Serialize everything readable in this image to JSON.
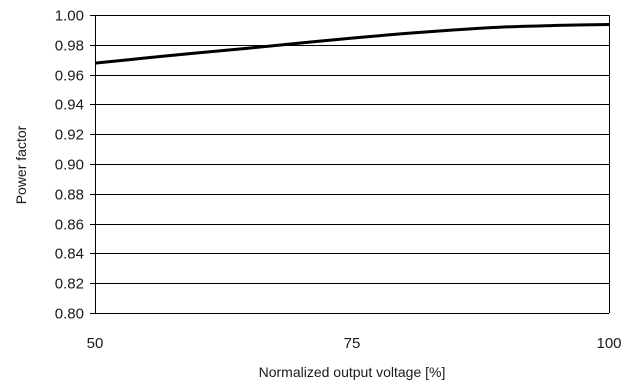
{
  "chart_data": {
    "type": "line",
    "title": "",
    "xlabel": "Normalized output voltage [%]",
    "ylabel": "Power factor",
    "xlim": [
      50,
      100
    ],
    "ylim": [
      0.8,
      1.0
    ],
    "x_ticks": [
      50,
      75,
      100
    ],
    "x_tick_labels": [
      "50",
      "75",
      "100"
    ],
    "y_ticks": [
      0.8,
      0.82,
      0.84,
      0.86,
      0.88,
      0.9,
      0.92,
      0.94,
      0.96,
      0.98,
      1.0
    ],
    "y_tick_labels": [
      "0.80",
      "0.82",
      "0.84",
      "0.86",
      "0.88",
      "0.90",
      "0.92",
      "0.94",
      "0.96",
      "0.98",
      "1.00"
    ],
    "grid": "horizontal",
    "legend": "none",
    "series": [
      {
        "color": "#000000",
        "x": [
          50,
          55,
          60,
          65,
          70,
          75,
          80,
          85,
          90,
          95,
          100
        ],
        "y": [
          0.9677,
          0.9712,
          0.9746,
          0.9778,
          0.9812,
          0.9845,
          0.9875,
          0.99,
          0.992,
          0.993,
          0.9936
        ]
      }
    ]
  }
}
